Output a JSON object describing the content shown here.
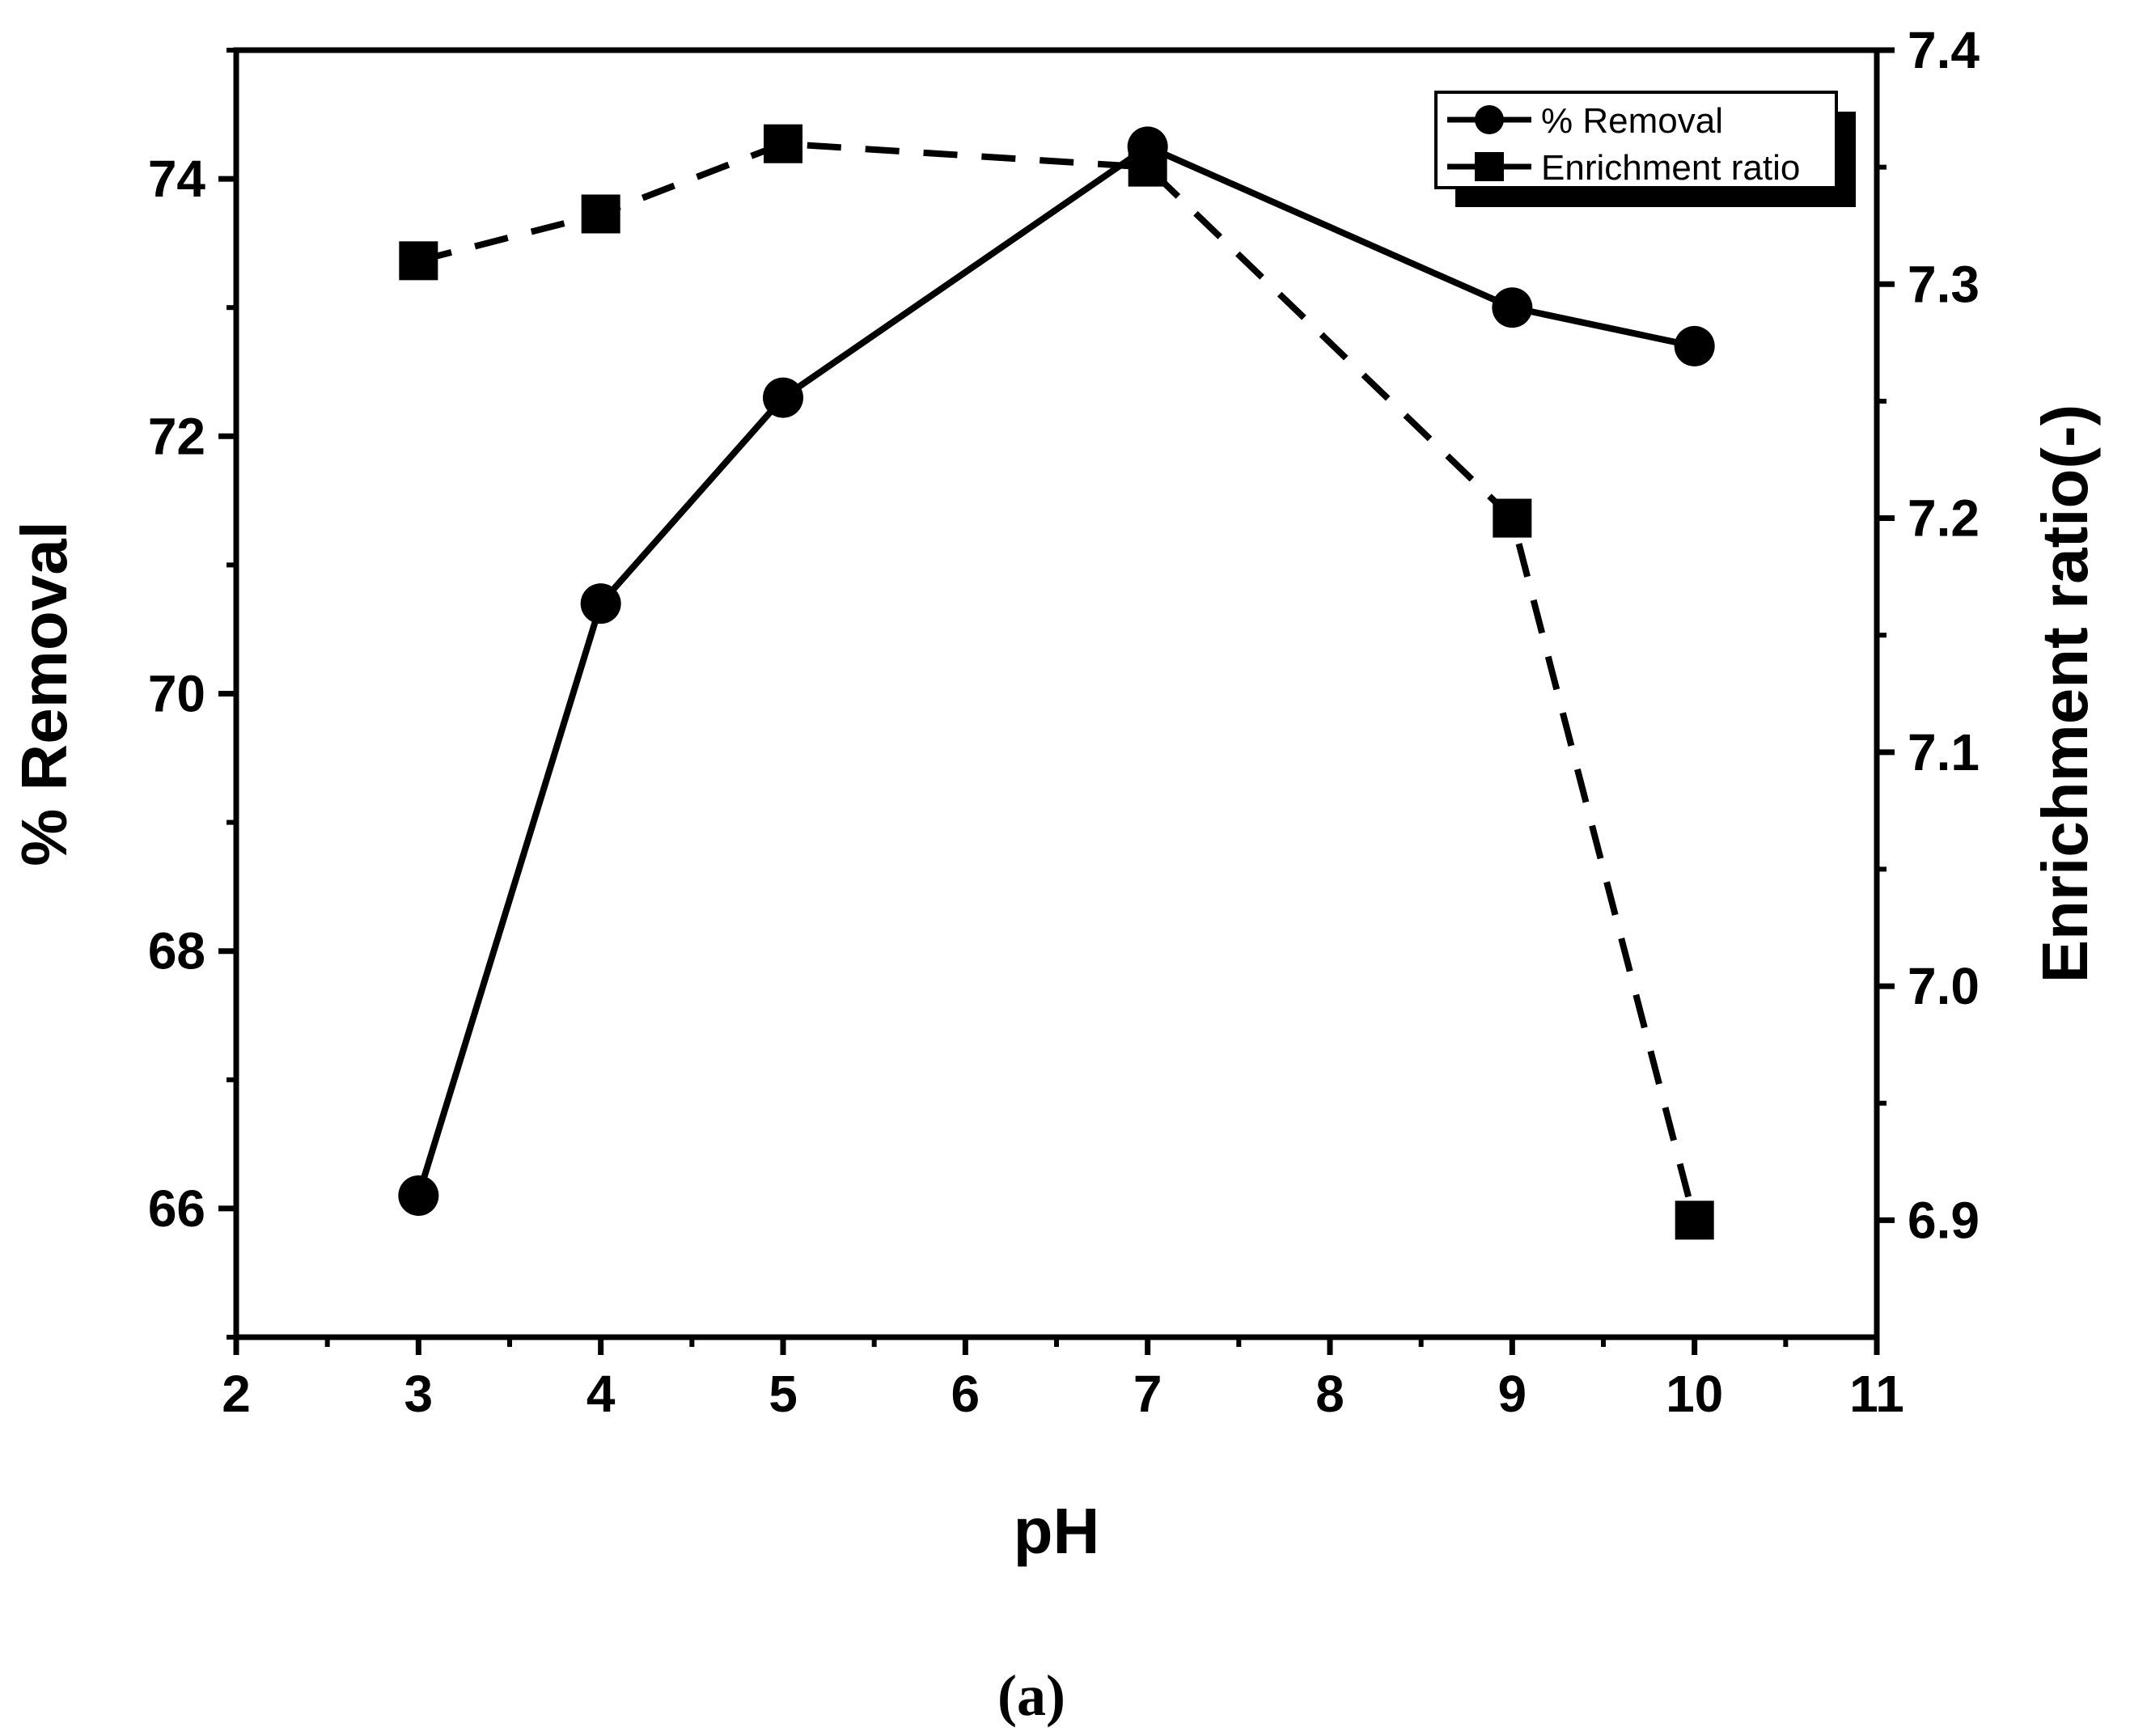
{
  "chart_data": {
    "type": "line",
    "caption": "(a)",
    "xlabel": "pH",
    "ylabel_left": "% Removal",
    "ylabel_right": "Enrichment ratio(-)",
    "xlim": [
      2,
      11
    ],
    "x_ticks": [
      2,
      3,
      4,
      5,
      6,
      7,
      8,
      9,
      10,
      11
    ],
    "ylim_left": [
      65,
      75
    ],
    "y_ticks_left": [
      66,
      68,
      70,
      72,
      74
    ],
    "ylim_right": [
      6.85,
      7.4
    ],
    "y_ticks_right": [
      "6.9",
      "7.0",
      "7.1",
      "7.2",
      "7.3",
      "7.4"
    ],
    "legend_position": "top-right",
    "grid": false,
    "series": [
      {
        "name": "% Removal",
        "axis": "left",
        "marker": "circle",
        "line_style": "solid",
        "x": [
          3,
          4,
          5,
          7,
          9,
          10
        ],
        "y": [
          66.1,
          70.7,
          72.3,
          74.25,
          73.0,
          72.7
        ]
      },
      {
        "name": "Enrichment ratio",
        "axis": "right",
        "marker": "square",
        "line_style": "dashed",
        "x": [
          3,
          4,
          5,
          7,
          9,
          10
        ],
        "y": [
          7.31,
          7.33,
          7.36,
          7.35,
          7.2,
          6.9
        ]
      }
    ]
  }
}
